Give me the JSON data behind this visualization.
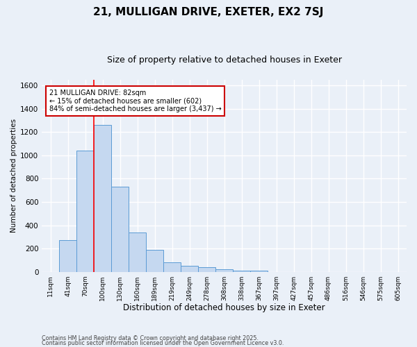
{
  "title1": "21, MULLIGAN DRIVE, EXETER, EX2 7SJ",
  "title2": "Size of property relative to detached houses in Exeter",
  "xlabel": "Distribution of detached houses by size in Exeter",
  "ylabel": "Number of detached properties",
  "categories": [
    "11sqm",
    "41sqm",
    "70sqm",
    "100sqm",
    "130sqm",
    "160sqm",
    "189sqm",
    "219sqm",
    "249sqm",
    "278sqm",
    "308sqm",
    "338sqm",
    "367sqm",
    "397sqm",
    "427sqm",
    "457sqm",
    "486sqm",
    "516sqm",
    "546sqm",
    "575sqm",
    "605sqm"
  ],
  "values": [
    0,
    270,
    1040,
    1260,
    730,
    340,
    190,
    80,
    50,
    40,
    20,
    10,
    10,
    0,
    0,
    0,
    0,
    0,
    0,
    0,
    0
  ],
  "bar_color": "#c5d8f0",
  "bar_edge_color": "#5b9bd5",
  "red_line_index": 2,
  "ylim": [
    0,
    1650
  ],
  "yticks": [
    0,
    200,
    400,
    600,
    800,
    1000,
    1200,
    1400,
    1600
  ],
  "annotation_title": "21 MULLIGAN DRIVE: 82sqm",
  "annotation_line1": "← 15% of detached houses are smaller (602)",
  "annotation_line2": "84% of semi-detached houses are larger (3,437) →",
  "annotation_box_facecolor": "#ffffff",
  "annotation_box_edgecolor": "#cc0000",
  "footnote1": "Contains HM Land Registry data © Crown copyright and database right 2025.",
  "footnote2": "Contains public sector information licensed under the Open Government Licence v3.0.",
  "background_color": "#eaf0f8",
  "grid_color": "#d0d8e8",
  "title1_fontsize": 11,
  "title2_fontsize": 9
}
